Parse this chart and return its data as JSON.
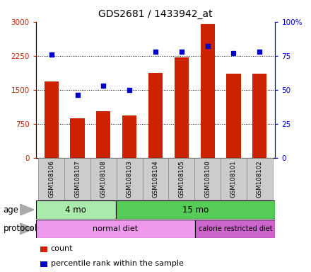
{
  "title": "GDS2681 / 1433942_at",
  "samples": [
    "GSM108106",
    "GSM108107",
    "GSM108108",
    "GSM108103",
    "GSM108104",
    "GSM108105",
    "GSM108100",
    "GSM108101",
    "GSM108102"
  ],
  "bar_values": [
    1680,
    870,
    1020,
    930,
    1870,
    2220,
    2950,
    1860,
    1860
  ],
  "dot_values": [
    76,
    46,
    53,
    50,
    78,
    78,
    82,
    77,
    78
  ],
  "bar_color": "#cc2200",
  "dot_color": "#0000cc",
  "yticks_left": [
    0,
    750,
    1500,
    2250,
    3000
  ],
  "yticks_right": [
    0,
    25,
    50,
    75,
    100
  ],
  "ylim_left": [
    0,
    3000
  ],
  "ylim_right": [
    0,
    100
  ],
  "age_groups": [
    {
      "label": "4 mo",
      "start": 0,
      "end": 3,
      "color": "#aaeaaa"
    },
    {
      "label": "15 mo",
      "start": 3,
      "end": 9,
      "color": "#55cc55"
    }
  ],
  "protocol_groups": [
    {
      "label": "normal diet",
      "start": 0,
      "end": 6,
      "color": "#ee99ee"
    },
    {
      "label": "calorie restricted diet",
      "start": 6,
      "end": 9,
      "color": "#cc66cc"
    }
  ],
  "age_label": "age",
  "protocol_label": "protocol",
  "legend_count_label": "count",
  "legend_pct_label": "percentile rank within the sample",
  "bg_color": "#ffffff",
  "plot_bg_color": "#ffffff",
  "grid_color": "#000000",
  "tick_label_color_left": "#cc2200",
  "tick_label_color_right": "#0000cc",
  "title_fontsize": 10,
  "sample_label_bg": "#cccccc",
  "bar_width": 0.55
}
